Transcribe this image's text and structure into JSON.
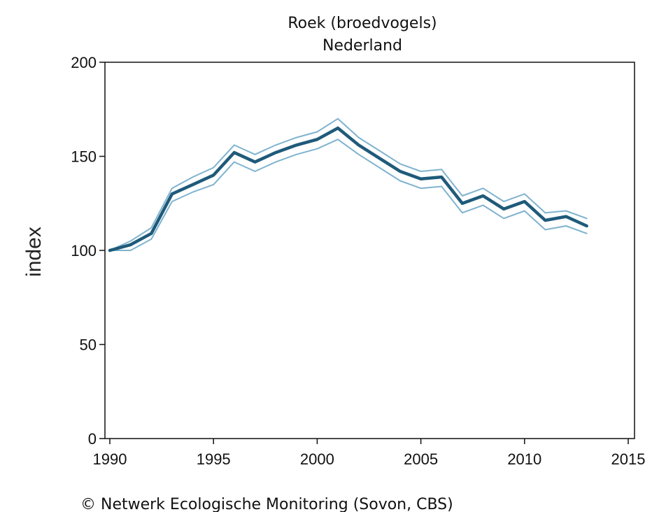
{
  "chart_data": {
    "type": "line",
    "title": "Roek (broedvogels)",
    "subtitle": "Nederland",
    "xlabel": "",
    "ylabel": "index",
    "xlim": [
      1990,
      2015
    ],
    "ylim": [
      0,
      200
    ],
    "x_ticks": [
      1990,
      1995,
      2000,
      2005,
      2010,
      2015
    ],
    "y_ticks": [
      0,
      50,
      100,
      150,
      200
    ],
    "grid": false,
    "x": [
      1990,
      1991,
      1992,
      1993,
      1994,
      1995,
      1996,
      1997,
      1998,
      1999,
      2000,
      2001,
      2002,
      2003,
      2004,
      2005,
      2006,
      2007,
      2008,
      2009,
      2010,
      2011,
      2012,
      2013
    ],
    "series": [
      {
        "role": "index",
        "color": "#1f5a7a",
        "values": [
          100,
          103,
          109,
          130,
          135,
          140,
          152,
          147,
          152,
          156,
          159,
          165,
          156,
          149,
          142,
          138,
          139,
          125,
          129,
          122,
          126,
          116,
          118,
          113
        ]
      },
      {
        "role": "upper",
        "color": "#7fb3cf",
        "values": [
          100,
          105,
          112,
          133,
          139,
          144,
          156,
          151,
          156,
          160,
          163,
          170,
          160,
          153,
          146,
          142,
          143,
          129,
          133,
          126,
          130,
          120,
          121,
          117
        ]
      },
      {
        "role": "lower",
        "color": "#7fb3cf",
        "values": [
          100,
          100,
          106,
          126,
          131,
          135,
          147,
          142,
          147,
          151,
          154,
          159,
          151,
          144,
          137,
          133,
          134,
          120,
          124,
          117,
          121,
          111,
          113,
          109
        ]
      }
    ]
  },
  "footer": {
    "credit": "© Netwerk Ecologische Monitoring (Sovon, CBS)"
  }
}
